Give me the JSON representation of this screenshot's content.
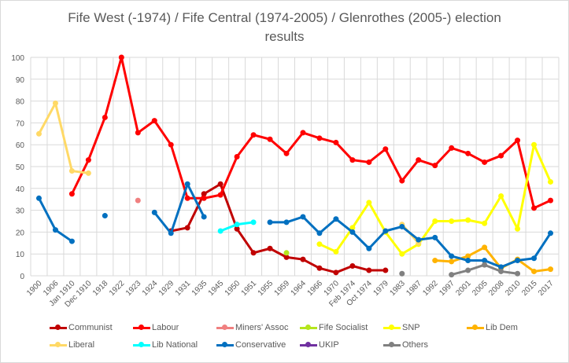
{
  "chart_data": {
    "type": "line",
    "title": "Fife West (-1974) / Fife Central (1974-2005) / Glenrothes (2005-) election results",
    "xlabel": "",
    "ylabel": "",
    "ylim": [
      0,
      100
    ],
    "yticks": [
      0,
      10,
      20,
      30,
      40,
      50,
      60,
      70,
      80,
      90,
      100
    ],
    "grid": true,
    "legend_position": "bottom",
    "categories": [
      "1900",
      "1906",
      "Jan 1910",
      "Dec 1910",
      "1918",
      "1922",
      "1923",
      "1924",
      "1929",
      "1931",
      "1935",
      "1945",
      "1950",
      "1951",
      "1955",
      "1959",
      "1964",
      "1966",
      "1970",
      "Feb 1974",
      "Oct 1974",
      "1979",
      "1983",
      "1987",
      "1992",
      "1997",
      "2001",
      "2005",
      "2008",
      "2010",
      "2015",
      "2017"
    ],
    "series": [
      {
        "name": "Communist",
        "color": "#c00000",
        "values": [
          null,
          null,
          null,
          null,
          null,
          null,
          null,
          null,
          20.5,
          22,
          37.5,
          42,
          21.5,
          10.5,
          12.5,
          8.5,
          7.5,
          3.5,
          1.5,
          4.5,
          2.5,
          2.5,
          null,
          null,
          null,
          null,
          null,
          null,
          null,
          null,
          null,
          null
        ]
      },
      {
        "name": "Labour",
        "color": "#ff0000",
        "values": [
          null,
          null,
          37.5,
          53,
          72.5,
          100,
          65.5,
          71,
          60,
          35.5,
          35.5,
          37,
          54.5,
          64.5,
          62.5,
          56,
          65.5,
          63,
          61,
          53,
          52,
          58,
          43.5,
          53,
          50.5,
          58.5,
          56,
          52,
          55,
          62,
          31,
          34.5
        ]
      },
      {
        "name": "Miners' Assoc",
        "color": "#f08080",
        "values": [
          null,
          null,
          null,
          null,
          null,
          null,
          34.5,
          null,
          null,
          null,
          null,
          null,
          null,
          null,
          null,
          null,
          null,
          null,
          null,
          null,
          null,
          null,
          null,
          null,
          null,
          null,
          null,
          null,
          null,
          null,
          null,
          null
        ]
      },
      {
        "name": "Fife Socialist",
        "color": "#b5e61d",
        "values": [
          null,
          null,
          null,
          null,
          null,
          null,
          null,
          null,
          null,
          null,
          null,
          null,
          null,
          null,
          null,
          10.5,
          null,
          null,
          null,
          null,
          null,
          null,
          null,
          null,
          null,
          null,
          null,
          null,
          null,
          null,
          null,
          null
        ]
      },
      {
        "name": "SNP",
        "color": "#ffff00",
        "values": [
          null,
          null,
          null,
          null,
          null,
          null,
          null,
          null,
          null,
          null,
          null,
          null,
          null,
          null,
          null,
          null,
          null,
          14.5,
          11,
          22,
          33.5,
          20,
          10,
          14.5,
          25,
          25,
          25.5,
          24,
          36.5,
          21.5,
          60,
          43
        ]
      },
      {
        "name": "Lib Dem",
        "color": "#ffb300",
        "values": [
          null,
          null,
          null,
          null,
          null,
          null,
          null,
          null,
          null,
          null,
          null,
          null,
          null,
          null,
          null,
          null,
          null,
          null,
          null,
          null,
          null,
          null,
          null,
          null,
          7,
          6.5,
          9,
          13,
          3.5,
          7.5,
          2,
          3
        ]
      },
      {
        "name": "Liberal",
        "color": "#ffd966",
        "values": [
          65,
          79,
          48,
          47,
          null,
          null,
          null,
          null,
          null,
          null,
          null,
          null,
          null,
          null,
          null,
          null,
          null,
          null,
          null,
          null,
          null,
          null,
          23.5,
          15,
          null,
          null,
          null,
          null,
          null,
          null,
          null,
          null
        ]
      },
      {
        "name": "Lib National",
        "color": "#00ffff",
        "values": [
          null,
          null,
          null,
          null,
          null,
          null,
          null,
          null,
          null,
          null,
          null,
          20.5,
          23.5,
          24.5,
          null,
          null,
          null,
          null,
          null,
          null,
          null,
          null,
          null,
          null,
          null,
          null,
          null,
          null,
          null,
          null,
          null,
          null
        ]
      },
      {
        "name": "Conservative",
        "color": "#0070c0",
        "values": [
          35.5,
          21,
          15.8,
          null,
          27.5,
          null,
          null,
          29,
          19.5,
          42,
          27,
          null,
          null,
          null,
          24.5,
          24.5,
          27,
          19.5,
          26,
          20,
          12.5,
          20.5,
          22.5,
          16.5,
          17.5,
          9,
          7,
          7,
          4,
          7,
          8,
          19.5
        ]
      },
      {
        "name": "UKIP",
        "color": "#7030a0",
        "values": [
          null,
          null,
          null,
          null,
          null,
          null,
          null,
          null,
          null,
          null,
          null,
          null,
          null,
          null,
          null,
          null,
          null,
          null,
          null,
          null,
          null,
          null,
          null,
          null,
          null,
          null,
          null,
          null,
          null,
          null,
          null,
          null
        ]
      },
      {
        "name": "Others",
        "color": "#808080",
        "values": [
          null,
          null,
          null,
          null,
          null,
          null,
          null,
          null,
          null,
          null,
          null,
          null,
          null,
          null,
          null,
          null,
          null,
          null,
          null,
          null,
          null,
          null,
          1,
          null,
          null,
          0.5,
          2.5,
          5,
          2,
          1,
          null,
          null
        ]
      }
    ]
  }
}
